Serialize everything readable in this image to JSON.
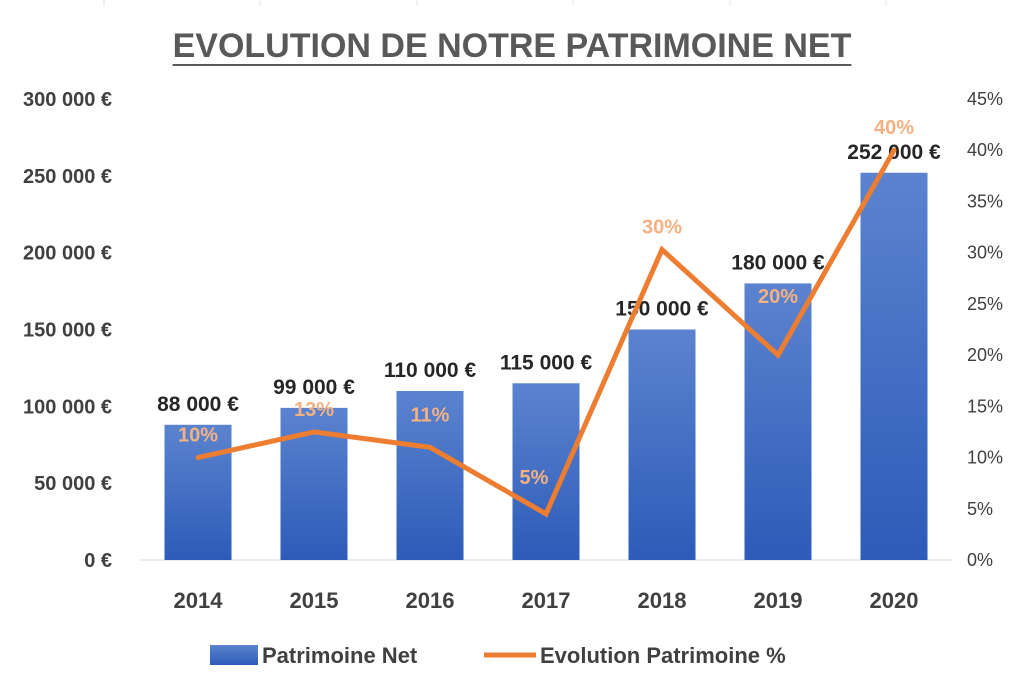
{
  "chart_data": {
    "type": "bar",
    "title": "EVOLUTION DE NOTRE PATRIMOINE NET",
    "categories": [
      "2014",
      "2015",
      "2016",
      "2017",
      "2018",
      "2019",
      "2020"
    ],
    "series": [
      {
        "name": "Patrimoine Net",
        "type": "bar",
        "axis": "left",
        "color": "#4472c4",
        "values": [
          88000,
          99000,
          110000,
          115000,
          150000,
          180000,
          252000
        ],
        "labels": [
          "88 000 €",
          "99 000 €",
          "110 000 €",
          "115 000 €",
          "150 000 €",
          "180 000 €",
          "252 000 €"
        ]
      },
      {
        "name": "Evolution Patrimoine %",
        "type": "line",
        "axis": "right",
        "color": "#ed7d31",
        "values": [
          10,
          12.5,
          11,
          4.5,
          30.3,
          20,
          40
        ],
        "labels": [
          "10%",
          "13%",
          "11%",
          "5%",
          "30%",
          "20%",
          "40%"
        ]
      }
    ],
    "y_left": {
      "ylim": [
        0,
        300000
      ],
      "ticks": [
        0,
        50000,
        100000,
        150000,
        200000,
        250000,
        300000
      ],
      "tick_labels": [
        "0 €",
        "50 000 €",
        "100 000 €",
        "150 000 €",
        "200 000 €",
        "250 000 €",
        "300 000 €"
      ]
    },
    "y_right": {
      "ylim": [
        0,
        45
      ],
      "ticks": [
        0,
        5,
        10,
        15,
        20,
        25,
        30,
        35,
        40,
        45
      ],
      "tick_labels": [
        "0%",
        "5%",
        "10%",
        "15%",
        "20%",
        "25%",
        "30%",
        "35%",
        "40%",
        "45%"
      ]
    },
    "xlabel": "",
    "ylabel": "",
    "grid": false,
    "legend_position": "bottom",
    "line_label_color": "#f4b183",
    "title_color": "#595959"
  }
}
